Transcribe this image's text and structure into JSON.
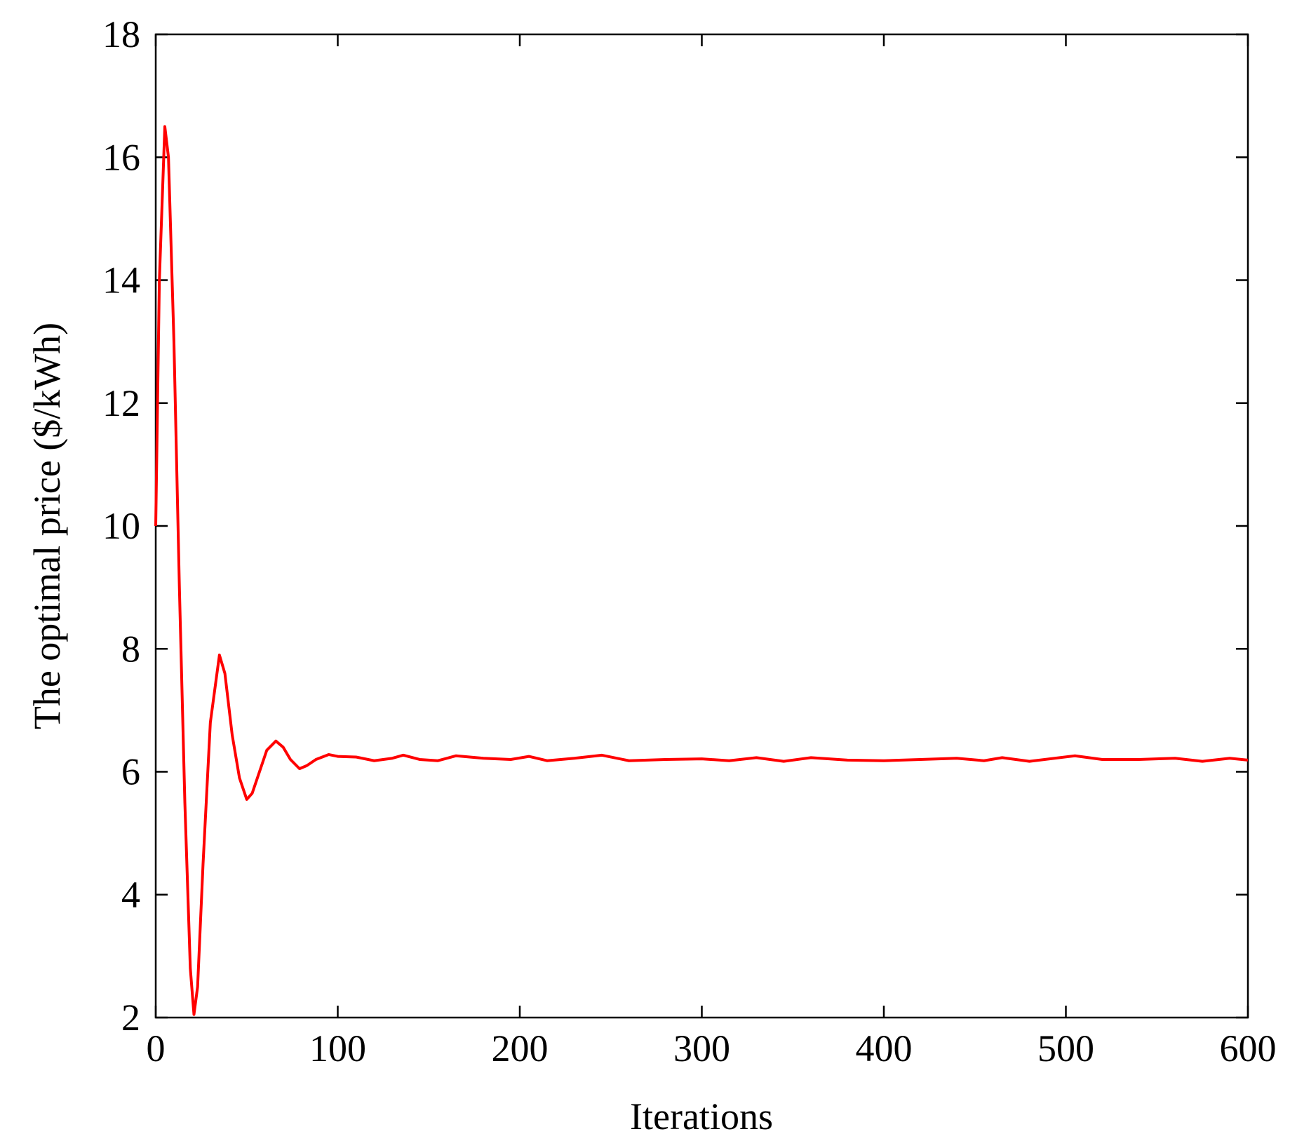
{
  "chart_data": {
    "type": "line",
    "x_label": "Iterations",
    "y_label": "The optimal price ($/kWh)",
    "xlim": [
      0,
      600
    ],
    "xticks": [
      0,
      100,
      200,
      300,
      400,
      500,
      600
    ],
    "ylim": [
      2,
      18
    ],
    "yticks": [
      2,
      4,
      6,
      8,
      10,
      12,
      14,
      16,
      18
    ],
    "grid": false,
    "series": [
      {
        "color": "#ff0000",
        "x": [
          0,
          2,
          5,
          7,
          10,
          13,
          16,
          19,
          21,
          23,
          26,
          30,
          35,
          38,
          42,
          46,
          50,
          53,
          57,
          61,
          66,
          70,
          74,
          79,
          83,
          88,
          95,
          100,
          110,
          120,
          130,
          136,
          145,
          155,
          165,
          180,
          195,
          205,
          215,
          230,
          245,
          260,
          280,
          300,
          315,
          330,
          345,
          360,
          380,
          400,
          420,
          440,
          455,
          465,
          480,
          505,
          520,
          540,
          560,
          575,
          590,
          600
        ],
        "values": [
          10,
          14,
          16.5,
          16,
          13,
          9,
          5.5,
          2.8,
          2.05,
          2.5,
          4.5,
          6.8,
          7.9,
          7.6,
          6.6,
          5.9,
          5.55,
          5.65,
          6.0,
          6.35,
          6.5,
          6.4,
          6.2,
          6.05,
          6.1,
          6.2,
          6.28,
          6.25,
          6.24,
          6.18,
          6.22,
          6.27,
          6.2,
          6.18,
          6.26,
          6.22,
          6.2,
          6.25,
          6.18,
          6.22,
          6.27,
          6.18,
          6.2,
          6.21,
          6.18,
          6.23,
          6.17,
          6.23,
          6.19,
          6.18,
          6.2,
          6.22,
          6.18,
          6.23,
          6.17,
          6.26,
          6.2,
          6.2,
          6.22,
          6.17,
          6.22,
          6.19
        ]
      }
    ]
  }
}
